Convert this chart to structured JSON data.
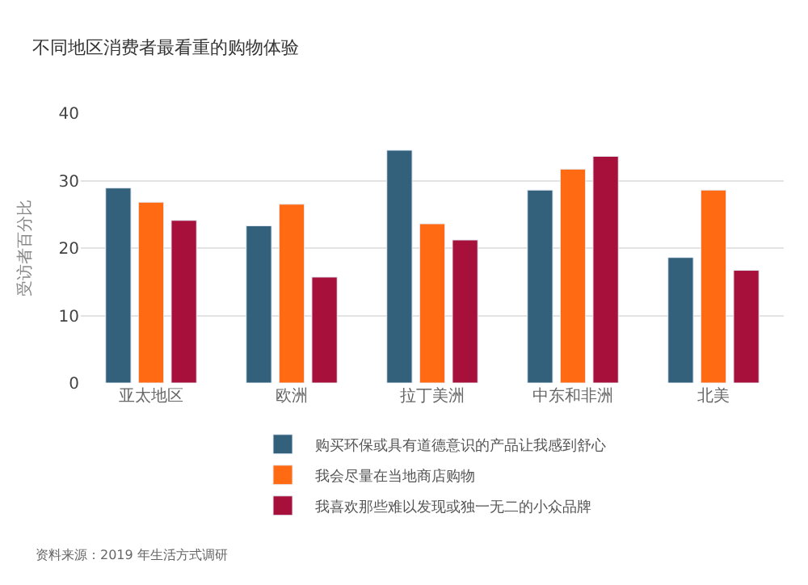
{
  "chart_data": {
    "type": "bar",
    "title": "不同地区消费者最看重的购物体验",
    "ylabel": "受访者百分比",
    "categories": [
      "亚太地区",
      "欧洲",
      "拉丁美洲",
      "中东和非洲",
      "北美"
    ],
    "series": [
      {
        "name": "购买环保或具有道德意识的产品让我感到舒心",
        "color": "#33607a",
        "values": [
          28.9,
          23.3,
          34.5,
          28.6,
          18.6
        ]
      },
      {
        "name": "我会尽量在当地商店购物",
        "color": "#ff6a13",
        "values": [
          26.8,
          26.5,
          23.6,
          31.7,
          28.6
        ]
      },
      {
        "name": "我喜欢那些难以发现或独一无二的小众品牌",
        "color": "#a6103a",
        "values": [
          24.1,
          15.7,
          21.2,
          33.6,
          16.7
        ]
      }
    ],
    "ylim": [
      0,
      40
    ],
    "yticks": [
      0,
      10,
      20,
      30,
      40
    ],
    "grid": "y",
    "legend": "bottom",
    "annotations": [
      "资料来源：2019 年生活方式调研"
    ]
  }
}
